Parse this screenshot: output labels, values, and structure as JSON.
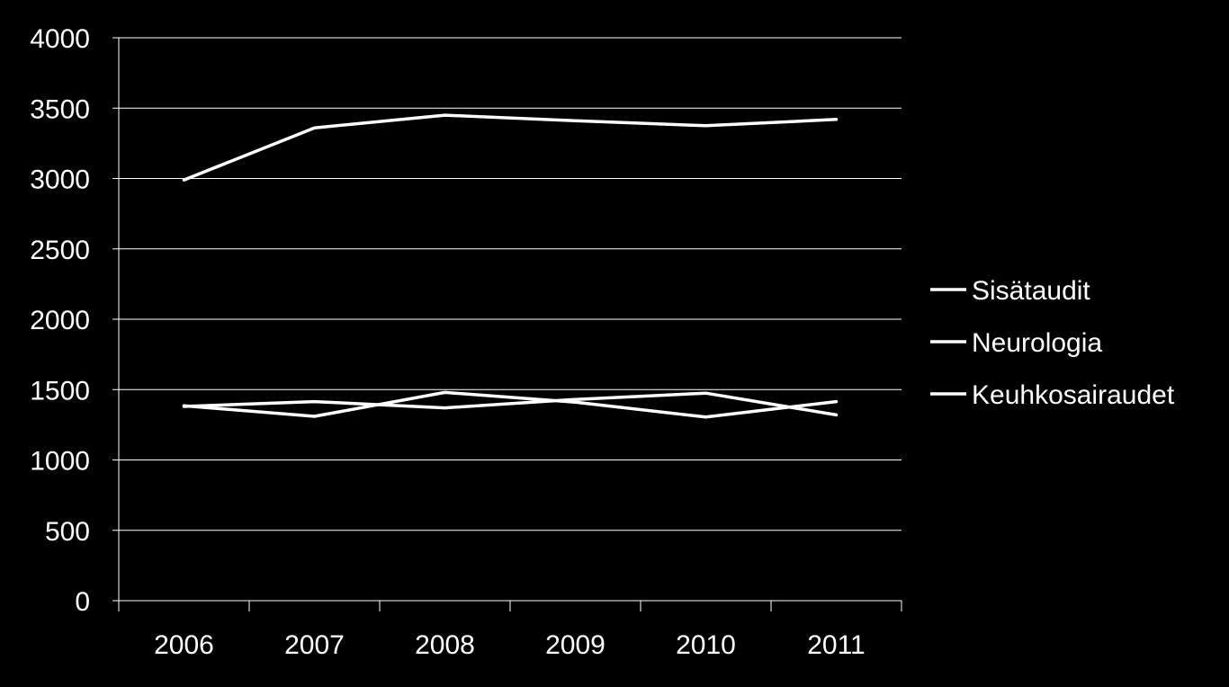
{
  "chart_data": {
    "type": "line",
    "categories": [
      "2006",
      "2007",
      "2008",
      "2009",
      "2010",
      "2011"
    ],
    "series": [
      {
        "name": "Sisätaudit",
        "values": [
          2990,
          3360,
          3450,
          3410,
          3375,
          3420
        ]
      },
      {
        "name": "Neurologia",
        "values": [
          1385,
          1310,
          1480,
          1410,
          1305,
          1415
        ]
      },
      {
        "name": "Keuhkosairaudet",
        "values": [
          1380,
          1415,
          1370,
          1430,
          1475,
          1320
        ]
      }
    ],
    "yticks": [
      "0",
      "500",
      "1000",
      "1500",
      "2000",
      "2500",
      "3000",
      "3500",
      "4000"
    ],
    "ylim": [
      0,
      4000
    ],
    "grid": true,
    "legend_position": "right",
    "colors": {
      "background": "#000000",
      "line": "#ffffff",
      "grid": "#ffffff",
      "text": "#ffffff"
    }
  }
}
